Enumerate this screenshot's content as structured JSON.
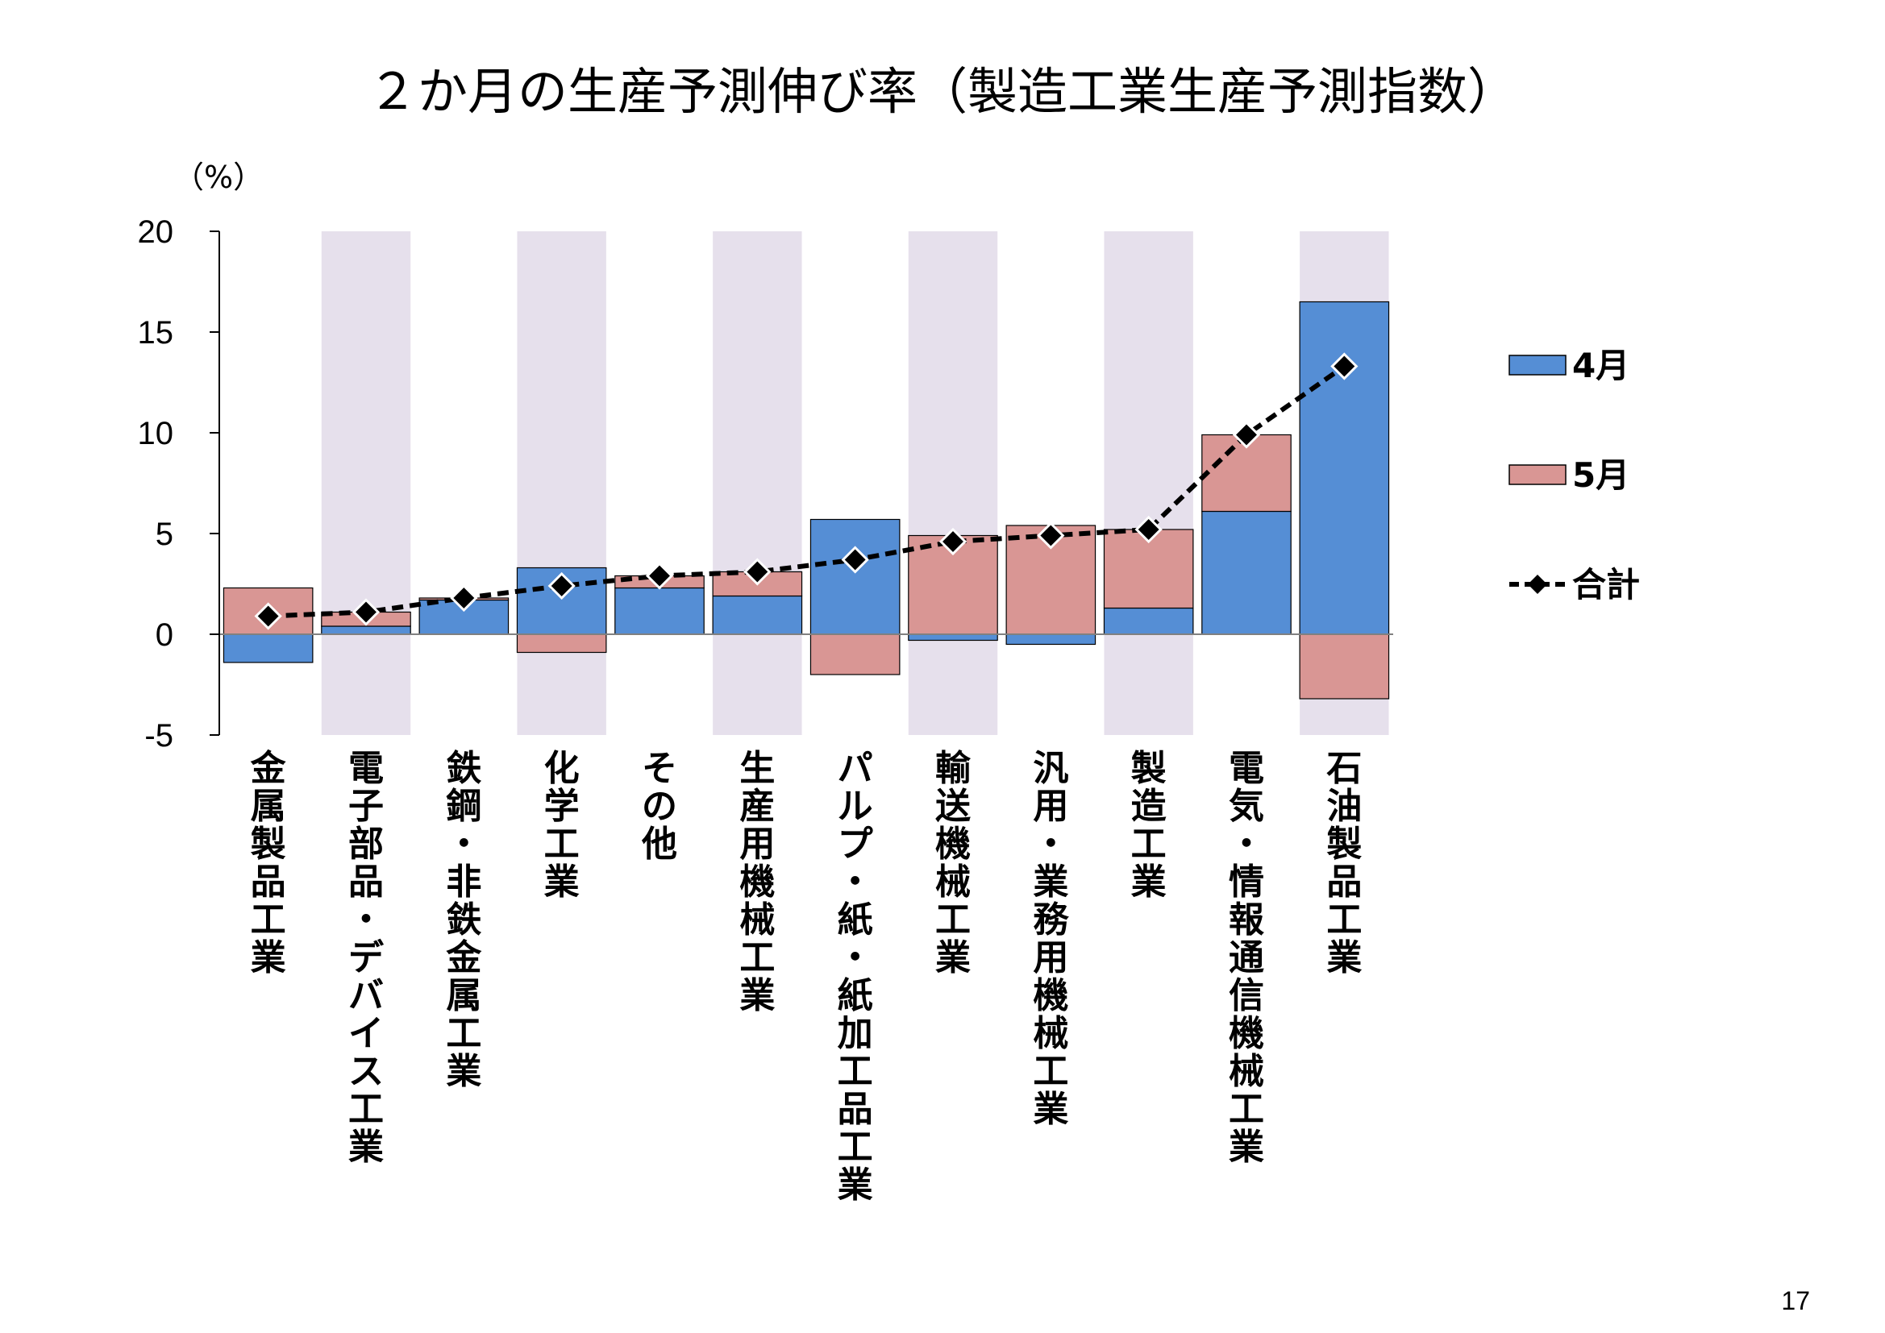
{
  "page_number": "17",
  "chart_data": {
    "type": "bar",
    "stacked": true,
    "title": "２か月の生産予測伸び率（製造工業生産予測指数）",
    "ylabel": "（%）",
    "ylim": [
      -5,
      20
    ],
    "yticks": [
      "20",
      "15",
      "10",
      "5",
      "0",
      "-5"
    ],
    "ytick_values": [
      20,
      15,
      10,
      5,
      0,
      -5
    ],
    "categories": [
      "金属製品工業",
      "電子部品・デバイス工業",
      "鉄鋼・非鉄金属工業",
      "化学工業",
      "その他",
      "生産用機械工業",
      "パルプ・紙・紙加工品工業",
      "輸送機械工業",
      "汎用・業務用機械工業",
      "製造工業",
      "電気・情報通信機械工業",
      "石油製品工業"
    ],
    "shaded_categories": [
      1,
      3,
      5,
      7,
      9,
      11
    ],
    "series": [
      {
        "name": "4月",
        "type": "bar",
        "color": "#558ed5",
        "values": [
          -1.4,
          0.4,
          1.7,
          3.3,
          2.3,
          1.9,
          5.7,
          -0.3,
          -0.5,
          1.3,
          6.1,
          16.5
        ]
      },
      {
        "name": "5月",
        "type": "bar",
        "color": "#d99694",
        "values": [
          2.3,
          0.7,
          0.1,
          -0.9,
          0.6,
          1.2,
          -2.0,
          4.9,
          5.4,
          3.9,
          3.8,
          -3.2
        ]
      },
      {
        "name": "合計",
        "type": "line",
        "color": "#000000",
        "marker": "diamond",
        "values": [
          0.9,
          1.1,
          1.8,
          2.4,
          2.9,
          3.1,
          3.7,
          4.6,
          4.9,
          5.2,
          9.9,
          13.3
        ]
      }
    ],
    "legend_position": "right",
    "grid": false,
    "shade_color": "#e6e0ec"
  }
}
